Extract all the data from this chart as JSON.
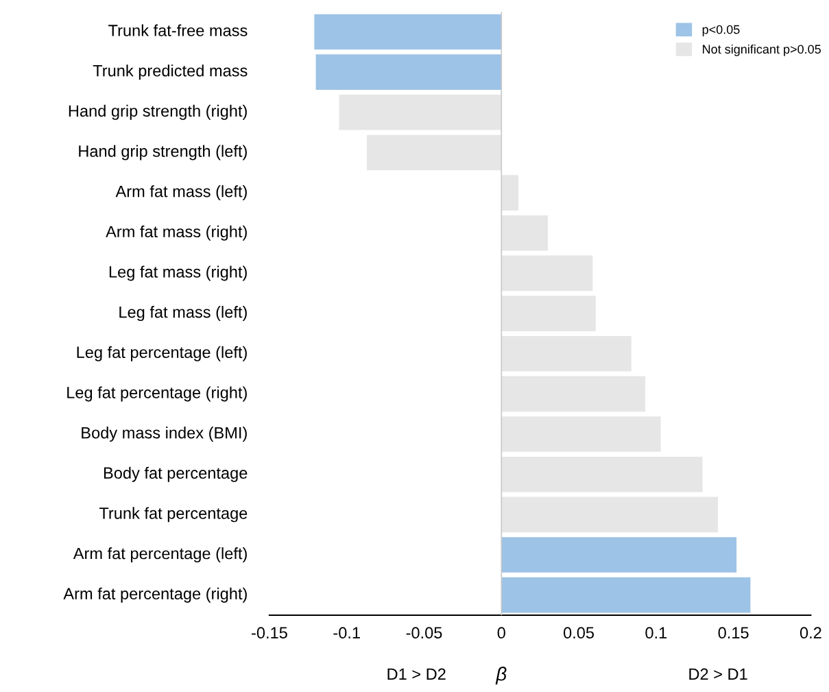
{
  "chart_data": {
    "type": "bar",
    "orientation": "horizontal",
    "categories": [
      "Trunk fat-free mass",
      "Trunk predicted mass",
      "Hand grip strength (right)",
      "Hand grip strength (left)",
      "Arm fat mass (left)",
      "Arm fat mass (right)",
      "Leg fat mass (right)",
      "Leg fat mass (left)",
      "Leg fat percentage (left)",
      "Leg fat percentage (right)",
      "Body mass index (BMI)",
      "Body fat percentage",
      "Trunk fat percentage",
      "Arm fat percentage (left)",
      "Arm fat percentage (right)"
    ],
    "series": [
      {
        "name": "p<0.05",
        "color": "#9dc3e6",
        "values": [
          -0.121,
          -0.12,
          null,
          null,
          null,
          null,
          null,
          null,
          null,
          null,
          null,
          null,
          null,
          0.152,
          0.161
        ]
      },
      {
        "name": "Not significant p>0.05",
        "color": "#e7e6e6",
        "values": [
          null,
          null,
          -0.105,
          -0.087,
          0.011,
          0.03,
          0.059,
          0.061,
          0.084,
          0.093,
          0.103,
          0.13,
          0.14,
          null,
          null
        ]
      }
    ],
    "xlim": [
      -0.15,
      0.2
    ],
    "xticks": [
      -0.15,
      -0.1,
      -0.05,
      0,
      0.05,
      0.1,
      0.15,
      0.2
    ],
    "xlabel": "β",
    "annotations": [
      "D1 > D2",
      "D2 > D1"
    ],
    "ref_lines": [
      {
        "axis": "x",
        "value": 0,
        "color": "#c8c8c8"
      }
    ],
    "legend": "top right"
  }
}
